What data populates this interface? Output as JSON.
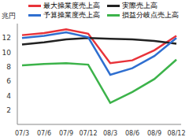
{
  "chart_data": {
    "type": "line",
    "y_label": "兆円",
    "categories": [
      "07/3",
      "07/6",
      "07/9",
      "07/12",
      "08/3",
      "08/6",
      "08/9",
      "08/12"
    ],
    "ylim": [
      0,
      14
    ],
    "yticks": [
      2,
      4,
      6,
      8,
      10,
      12
    ],
    "legend": "top",
    "series": [
      {
        "name": "最大操業度売上高",
        "color": "#e8333a",
        "values": [
          12.4,
          12.7,
          13.2,
          12.6,
          8.5,
          8.9,
          10.3,
          12.3
        ]
      },
      {
        "name": "実際売上高",
        "color": "#222222",
        "values": [
          11.1,
          11.4,
          11.8,
          12.0,
          11.9,
          11.8,
          11.6,
          11.2
        ]
      },
      {
        "name": "予算操業度売上高",
        "color": "#2f6fd0",
        "values": [
          12.0,
          12.3,
          12.8,
          12.1,
          6.9,
          7.8,
          9.5,
          12.0
        ]
      },
      {
        "name": "損益分岐点売上高",
        "color": "#3cb34a",
        "values": [
          8.2,
          8.4,
          8.5,
          8.3,
          3.0,
          4.5,
          6.3,
          9.0
        ]
      }
    ]
  }
}
